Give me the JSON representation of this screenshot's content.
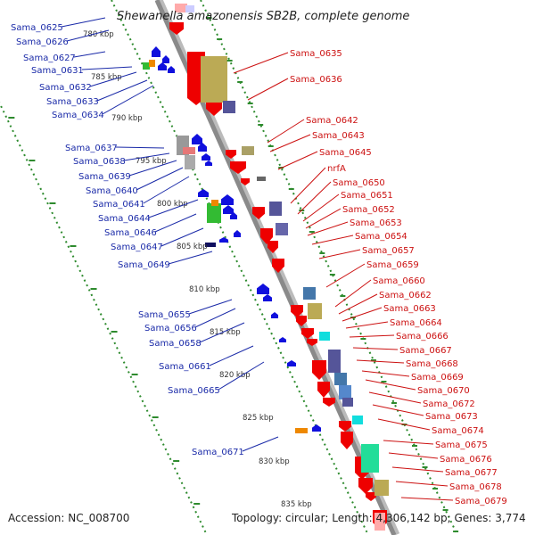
{
  "title": "Shewanella amazonensis SB2B, complete genome",
  "accession": "Accession: NC_008700",
  "topology": "Topology: circular; Length: 4,306,142 bp; Genes: 3,774",
  "colors": {
    "backbone": "#8a8a8a",
    "dots": "#2e8b2e",
    "ticks": "#2e8b2e",
    "left_label": "#1a2aa8",
    "right_label": "#cc1111",
    "forward_gene": "#ee0000",
    "reverse_gene": "#1010dd"
  },
  "kbp_ticks": [
    "780 kbp",
    "785 kbp",
    "790 kbp",
    "795 kbp",
    "800 kbp",
    "805 kbp",
    "810 kbp",
    "815 kbp",
    "820 kbp",
    "825 kbp",
    "830 kbp",
    "835 kbp"
  ],
  "left_labels": [
    "Sama_0625",
    "Sama_0626",
    "Sama_0627",
    "Sama_0631",
    "Sama_0632",
    "Sama_0633",
    "Sama_0634",
    "Sama_0637",
    "Sama_0638",
    "Sama_0639",
    "Sama_0640",
    "Sama_0641",
    "Sama_0644",
    "Sama_0646",
    "Sama_0647",
    "Sama_0649",
    "Sama_0655",
    "Sama_0656",
    "Sama_0658",
    "Sama_0661",
    "Sama_0665",
    "Sama_0671"
  ],
  "right_labels": [
    "Sama_0635",
    "Sama_0636",
    "Sama_0642",
    "Sama_0643",
    "Sama_0645",
    "nrfA",
    "Sama_0650",
    "Sama_0651",
    "Sama_0652",
    "Sama_0653",
    "Sama_0654",
    "Sama_0657",
    "Sama_0659",
    "Sama_0660",
    "Sama_0662",
    "Sama_0663",
    "Sama_0664",
    "Sama_0666",
    "Sama_0667",
    "Sama_0668",
    "Sama_0669",
    "Sama_0670",
    "Sama_0672",
    "Sama_0673",
    "Sama_0674",
    "Sama_0675",
    "Sama_0676",
    "Sama_0677",
    "Sama_0678",
    "Sama_0679"
  ]
}
